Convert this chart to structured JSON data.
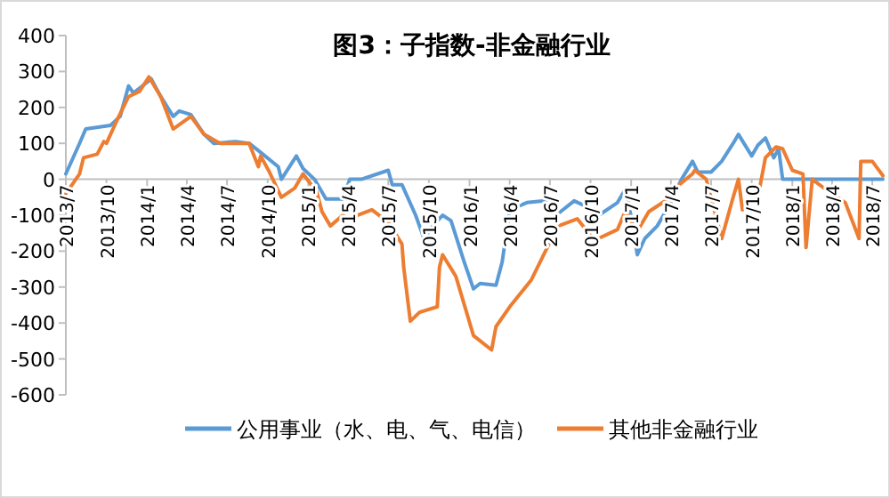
{
  "chart_data": {
    "type": "line",
    "title": "图3：子指数-非金融行业",
    "xlim": [
      "2013-07-01",
      "2018-07-25"
    ],
    "xticks": [
      {
        "value": "2013-07-01",
        "label": "2013/7"
      },
      {
        "value": "2013-10-01",
        "label": "2013/10"
      },
      {
        "value": "2014-01-01",
        "label": "2014/1"
      },
      {
        "value": "2014-04-01",
        "label": "2014/4"
      },
      {
        "value": "2014-07-01",
        "label": "2014/7"
      },
      {
        "value": "2014-10-01",
        "label": "2014/10"
      },
      {
        "value": "2015-01-01",
        "label": "2015/1"
      },
      {
        "value": "2015-04-01",
        "label": "2015/4"
      },
      {
        "value": "2015-07-01",
        "label": "2015/7"
      },
      {
        "value": "2015-10-01",
        "label": "2015/10"
      },
      {
        "value": "2016-01-01",
        "label": "2016/1"
      },
      {
        "value": "2016-04-01",
        "label": "2016/4"
      },
      {
        "value": "2016-07-01",
        "label": "2016/7"
      },
      {
        "value": "2016-10-01",
        "label": "2016/10"
      },
      {
        "value": "2017-01-01",
        "label": "2017/1"
      },
      {
        "value": "2017-04-01",
        "label": "2017/4"
      },
      {
        "value": "2017-07-01",
        "label": "2017/7"
      },
      {
        "value": "2017-10-01",
        "label": "2017/10"
      },
      {
        "value": "2018-01-01",
        "label": "2018/1"
      },
      {
        "value": "2018-04-01",
        "label": "2018/4"
      },
      {
        "value": "2018-07-01",
        "label": "2018/7"
      }
    ],
    "ylim": [
      -600,
      400
    ],
    "yticks": [
      -600,
      -500,
      -400,
      -300,
      -200,
      -100,
      0,
      100,
      200,
      300,
      400
    ],
    "grid": false,
    "legend": "bottom",
    "marker": "none",
    "line_style": "solid",
    "series": [
      {
        "name": "公用事业（水、电、气、电信）",
        "color": "#5b9bd5",
        "x": [
          "2013-07-01",
          "2013-08-01",
          "2013-08-15",
          "2013-10-10",
          "2013-11-01",
          "2013-11-20",
          "2013-12-01",
          "2014-01-01",
          "2014-01-10",
          "2014-02-01",
          "2014-03-01",
          "2014-03-15",
          "2014-04-10",
          "2014-05-10",
          "2014-06-01",
          "2014-07-20",
          "2014-08-20",
          "2014-09-15",
          "2014-10-25",
          "2014-11-01",
          "2014-12-05",
          "2014-12-20",
          "2015-01-15",
          "2015-02-10",
          "2015-03-20",
          "2015-04-05",
          "2015-05-01",
          "2015-07-01",
          "2015-07-10",
          "2015-08-01",
          "2015-09-01",
          "2015-09-20",
          "2015-10-10",
          "2015-11-01",
          "2015-11-20",
          "2015-12-20",
          "2016-01-10",
          "2016-01-25",
          "2016-03-01",
          "2016-03-15",
          "2016-04-01",
          "2016-05-10",
          "2016-06-20",
          "2016-07-15",
          "2016-08-25",
          "2016-09-20",
          "2016-10-20",
          "2016-12-01",
          "2016-12-20",
          "2017-01-01",
          "2017-01-15",
          "2017-02-01",
          "2017-03-01",
          "2017-04-01",
          "2017-04-25",
          "2017-05-20",
          "2017-06-01",
          "2017-07-01",
          "2017-07-25",
          "2017-08-20",
          "2017-09-01",
          "2017-10-01",
          "2017-10-15",
          "2017-11-01",
          "2017-11-20",
          "2017-12-01",
          "2017-12-10",
          "2018-07-25"
        ],
        "values": [
          15,
          100,
          140,
          150,
          175,
          260,
          240,
          270,
          280,
          230,
          175,
          190,
          180,
          125,
          100,
          105,
          100,
          75,
          35,
          0,
          65,
          30,
          0,
          -55,
          -55,
          0,
          0,
          25,
          -15,
          -15,
          -100,
          -165,
          -130,
          -100,
          -115,
          -230,
          -305,
          -290,
          -295,
          -230,
          -85,
          -65,
          -60,
          -100,
          -60,
          -75,
          -100,
          -65,
          -25,
          -105,
          -210,
          -165,
          -130,
          -65,
          0,
          50,
          20,
          20,
          50,
          100,
          125,
          65,
          95,
          115,
          60,
          85,
          0,
          0
        ]
      },
      {
        "name": "其他非金融行业",
        "color": "#ed7d31",
        "x": [
          "2013-07-01",
          "2013-08-01",
          "2013-08-10",
          "2013-09-10",
          "2013-09-25",
          "2013-10-01",
          "2013-10-25",
          "2013-11-20",
          "2013-12-15",
          "2014-01-05",
          "2014-02-01",
          "2014-03-01",
          "2014-04-10",
          "2014-05-10",
          "2014-06-15",
          "2014-08-20",
          "2014-09-10",
          "2014-09-15",
          "2014-10-05",
          "2014-11-01",
          "2014-12-01",
          "2014-12-20",
          "2015-01-20",
          "2015-02-01",
          "2015-02-20",
          "2015-03-20",
          "2015-04-01",
          "2015-05-25",
          "2015-07-01",
          "2015-08-01",
          "2015-08-05",
          "2015-08-20",
          "2015-09-10",
          "2015-10-20",
          "2015-10-25",
          "2015-11-01",
          "2015-12-01",
          "2016-01-10",
          "2016-02-20",
          "2016-03-01",
          "2016-04-01",
          "2016-05-20",
          "2016-06-25",
          "2016-07-20",
          "2016-09-01",
          "2016-10-10",
          "2016-12-01",
          "2016-12-20",
          "2017-01-10",
          "2017-02-10",
          "2017-04-01",
          "2017-04-20",
          "2017-05-20",
          "2017-05-25",
          "2017-06-20",
          "2017-07-25",
          "2017-08-20",
          "2017-09-01",
          "2017-09-10",
          "2017-10-15",
          "2017-11-01",
          "2017-11-25",
          "2017-12-10",
          "2018-01-01",
          "2018-01-25",
          "2018-02-01",
          "2018-02-15",
          "2018-03-25",
          "2018-05-01",
          "2018-06-01",
          "2018-06-05",
          "2018-07-01",
          "2018-07-25"
        ],
        "values": [
          -40,
          15,
          60,
          70,
          105,
          100,
          165,
          230,
          245,
          285,
          230,
          140,
          175,
          125,
          100,
          100,
          35,
          65,
          20,
          -50,
          -25,
          15,
          -35,
          -90,
          -130,
          -100,
          -110,
          -85,
          -120,
          -180,
          -245,
          -395,
          -370,
          -355,
          -245,
          -210,
          -270,
          -435,
          -475,
          -410,
          -355,
          -280,
          -190,
          -130,
          -110,
          -170,
          -140,
          -85,
          -155,
          -90,
          -50,
          -15,
          15,
          25,
          0,
          -165,
          -50,
          0,
          -85,
          -50,
          60,
          90,
          85,
          25,
          15,
          -190,
          0,
          -35,
          -65,
          -165,
          50,
          50,
          10
        ]
      }
    ]
  }
}
